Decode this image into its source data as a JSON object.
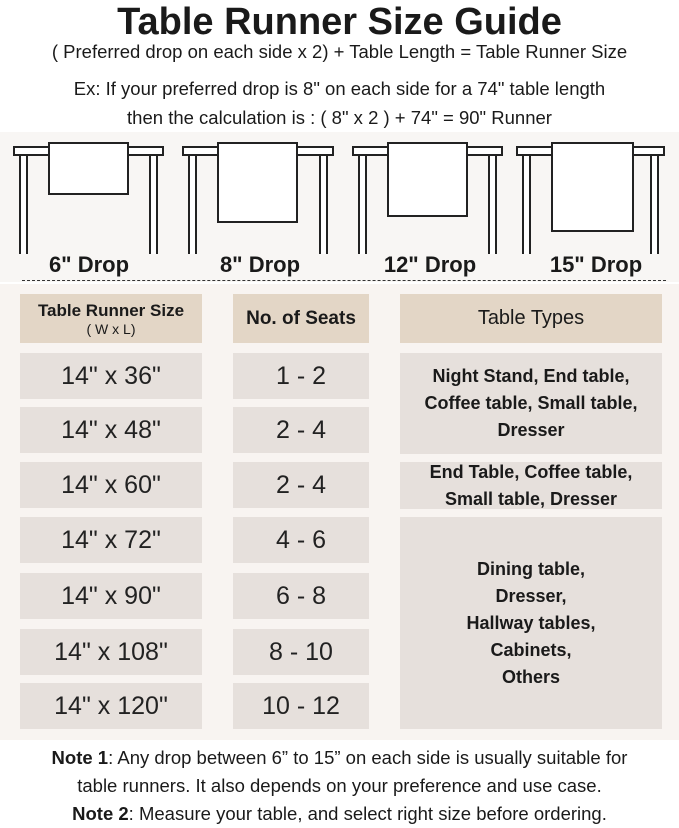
{
  "title": "Table Runner Size Guide",
  "subtitle": [
    "( Preferred drop on each side x 2) + Table Length = Table Runner Size",
    "Ex: If your preferred drop is 8\" on each side for a 74\" table length",
    "then the calculation is : ( 8\" x 2 ) + 74\" = 90\" Runner"
  ],
  "drops": [
    "6\" Drop",
    "8\" Drop",
    "12\" Drop",
    "15\" Drop"
  ],
  "table": {
    "headers": {
      "size": "Table Runner Size",
      "size_sub": "( W x L)",
      "seats": "No. of Seats",
      "types": "Table Types"
    },
    "rows": [
      {
        "size": "14\" x 36\"",
        "seats": "1 - 2"
      },
      {
        "size": "14\" x 48\"",
        "seats": "2 - 4"
      },
      {
        "size": "14\" x 60\"",
        "seats": "2 - 4"
      },
      {
        "size": "14\" x 72\"",
        "seats": "4 - 6"
      },
      {
        "size": "14\" x 90\"",
        "seats": "6 - 8"
      },
      {
        "size": "14\" x 108\"",
        "seats": "8 - 10"
      },
      {
        "size": "14\" x 120\"",
        "seats": "10 - 12"
      }
    ],
    "types": [
      "Night Stand, End table, Coffee table, Small table, Dresser",
      "End Table, Coffee table, Small table, Dresser",
      "Dining table, Dresser, Hallway tables, Cabinets, Others"
    ]
  },
  "notes": [
    {
      "label": "Note 1",
      "text": ": Any drop between 6” to 15” on each side is usually suitable for"
    },
    {
      "label": "",
      "text": "table runners. It also depends on your preference and use case."
    },
    {
      "label": "Note 2",
      "text": ": Measure your table, and select right size before ordering."
    }
  ],
  "colors": {
    "header_bg": "#e3d6c6",
    "cell_bg": "#e6e0dc",
    "panel_bg": "#f8f4f1"
  }
}
